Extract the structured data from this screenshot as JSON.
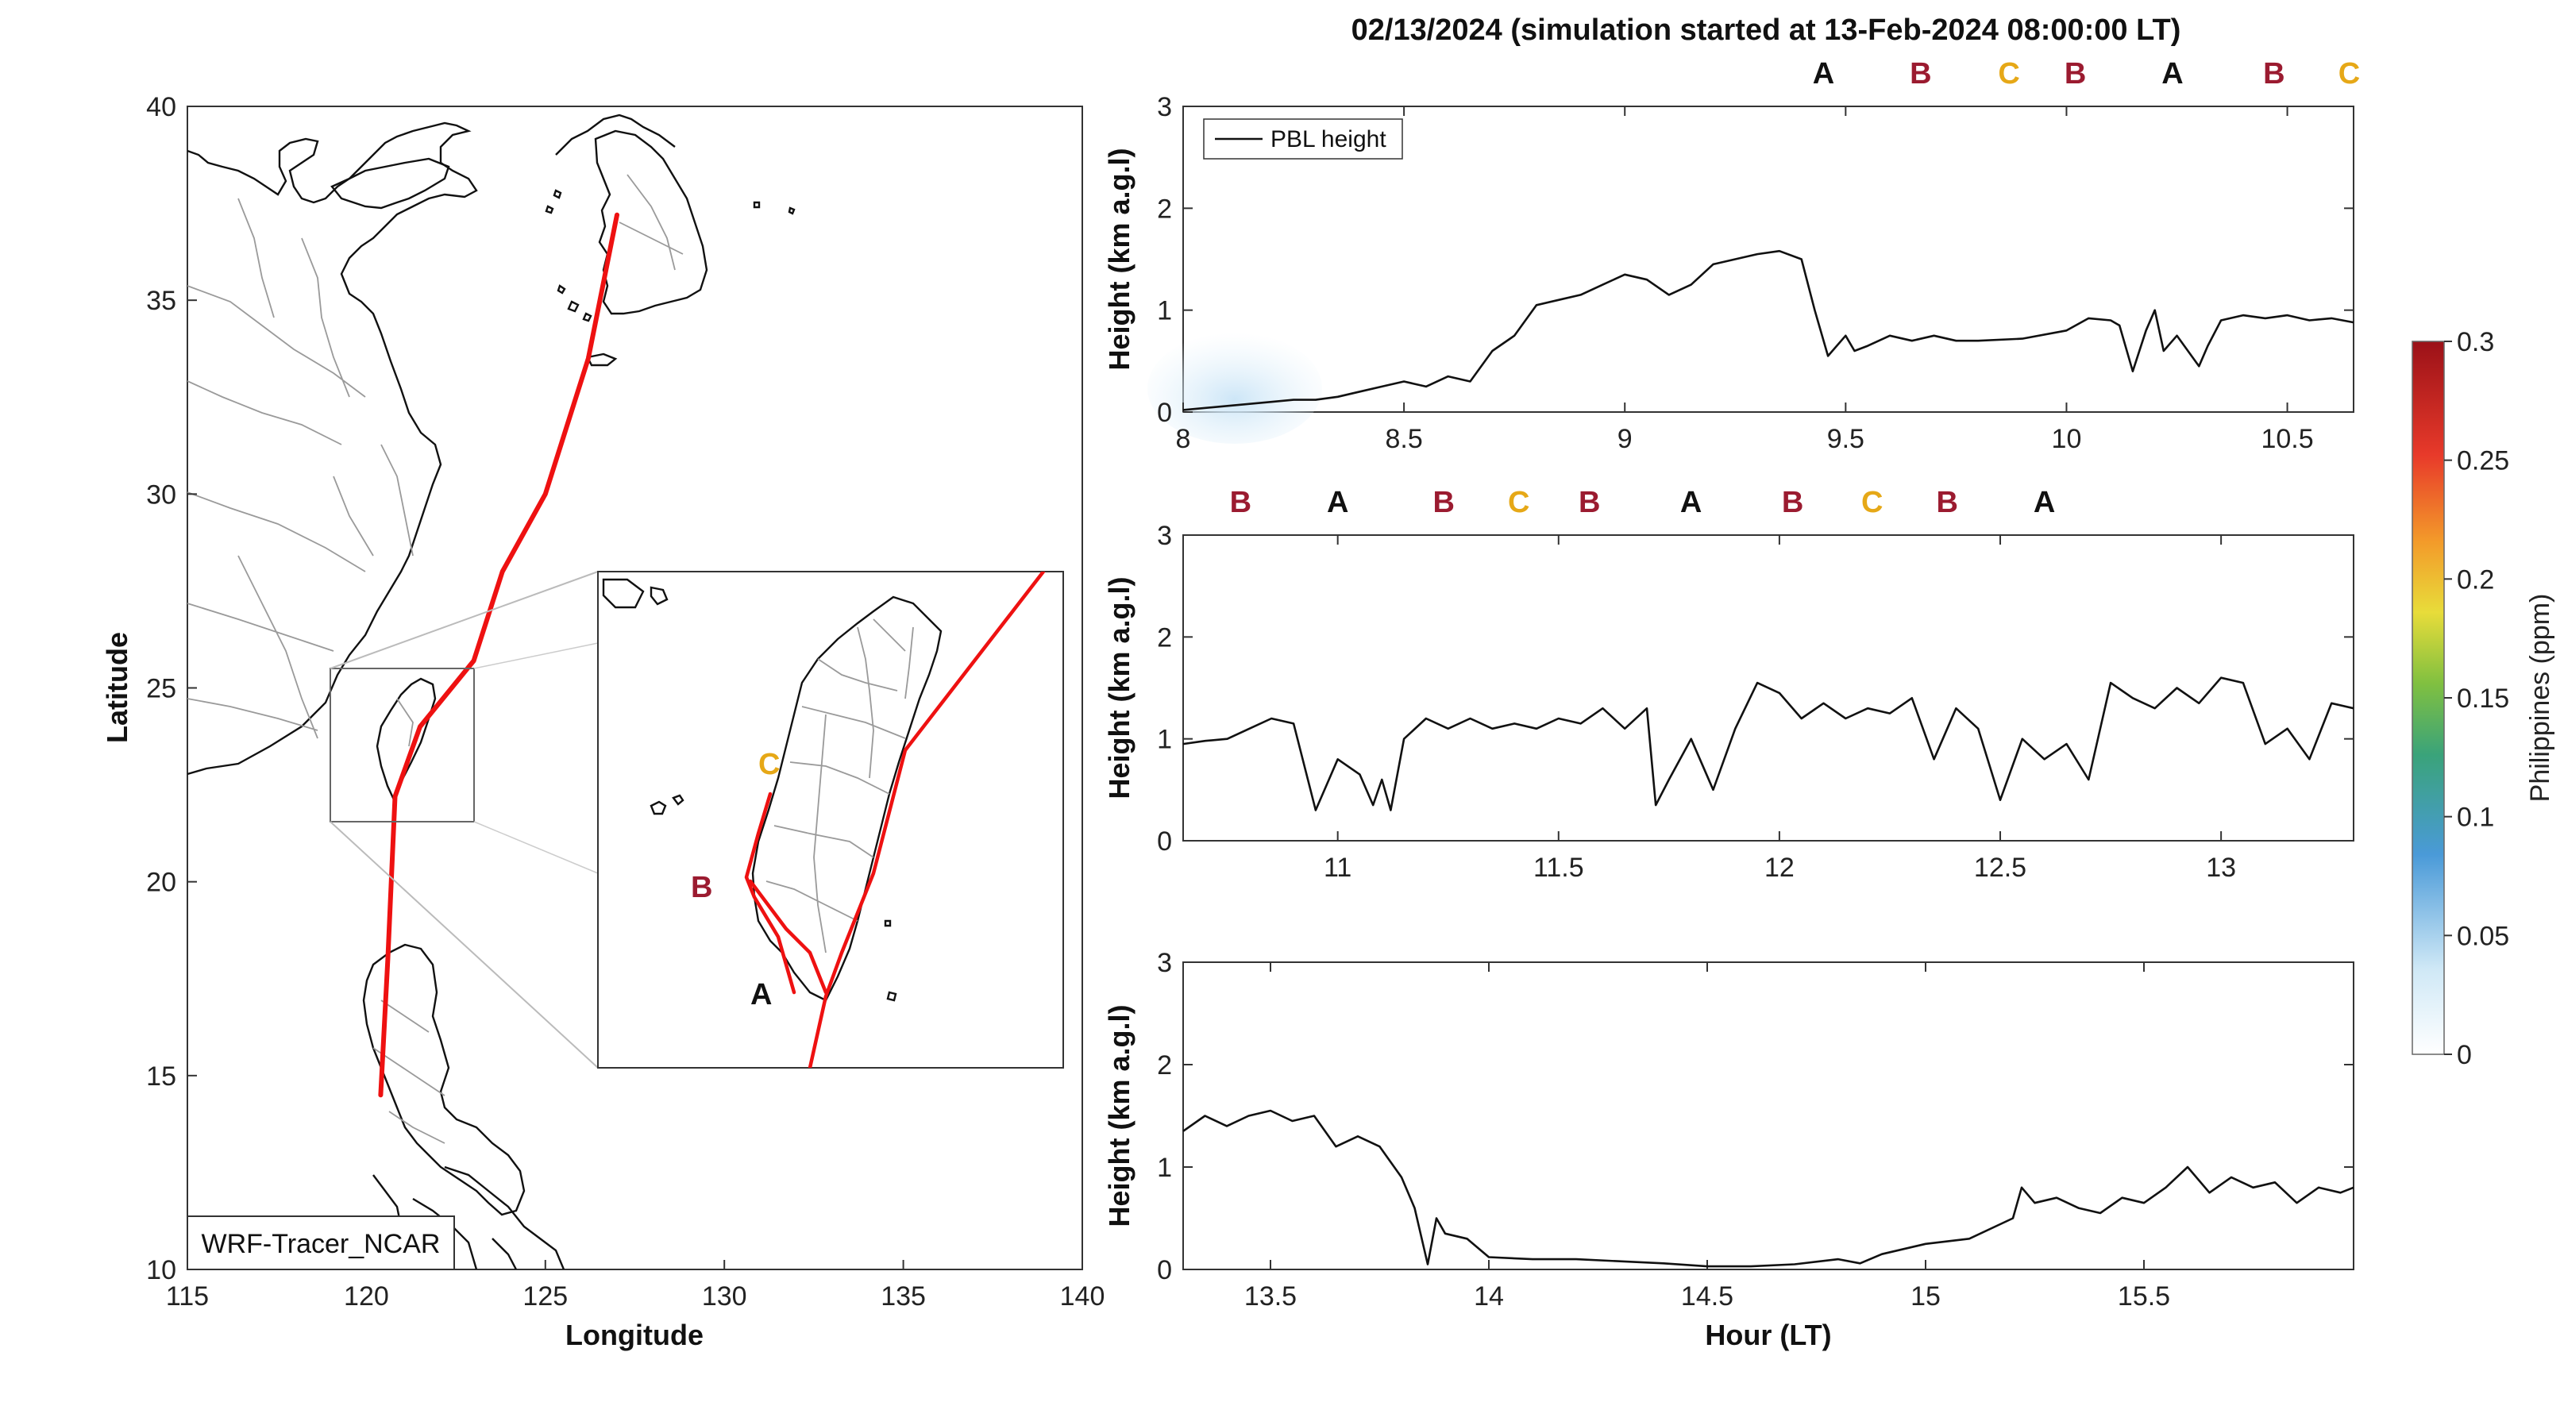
{
  "title": "02/13/2024 (simulation started at 13-Feb-2024 08:00:00 LT)",
  "map": {
    "xlabel": "Longitude",
    "ylabel": "Latitude",
    "xticks": [
      "115",
      "120",
      "125",
      "130",
      "135",
      "140"
    ],
    "yticks": [
      "10",
      "15",
      "20",
      "25",
      "30",
      "35",
      "40"
    ],
    "model_label": "WRF-Tracer_NCAR",
    "trajectory_color": "#ee1111",
    "trajectory": [
      [
        127.0,
        37.2
      ],
      [
        126.2,
        33.5
      ],
      [
        125.0,
        30.0
      ],
      [
        123.8,
        28.0
      ],
      [
        123.0,
        25.7
      ],
      [
        121.5,
        24.0
      ],
      [
        120.8,
        22.2
      ],
      [
        120.6,
        18.0
      ],
      [
        120.4,
        14.5
      ]
    ],
    "inset_labels": [
      {
        "text": "C",
        "color": "#e6a817"
      },
      {
        "text": "B",
        "color": "#9b1b30"
      },
      {
        "text": "A",
        "color": "#111111"
      }
    ]
  },
  "colorbar": {
    "label": "Philippines (ppm)",
    "ticks": [
      "0",
      "0.05",
      "0.1",
      "0.15",
      "0.2",
      "0.25",
      "0.3"
    ]
  },
  "marker_colors": {
    "A": "#111111",
    "B": "#9b1b30",
    "C": "#e6a817"
  },
  "chart_data": [
    {
      "type": "line",
      "ylabel": "Height (km a.g.l)",
      "xlim": [
        8,
        10.65
      ],
      "ylim": [
        0,
        3
      ],
      "xticks": [
        "8",
        "8.5",
        "9",
        "9.5",
        "10",
        "10.5"
      ],
      "yticks": [
        "0",
        "1",
        "2",
        "3"
      ],
      "legend": "PBL height",
      "legend_position": "top-left",
      "markers": [
        {
          "label": "A",
          "x": 9.45
        },
        {
          "label": "B",
          "x": 9.67
        },
        {
          "label": "C",
          "x": 9.87
        },
        {
          "label": "B",
          "x": 10.02
        },
        {
          "label": "A",
          "x": 10.24
        },
        {
          "label": "B",
          "x": 10.47
        },
        {
          "label": "C",
          "x": 10.64
        }
      ],
      "series": [
        {
          "name": "PBL height",
          "x": [
            8.0,
            8.1,
            8.2,
            8.25,
            8.3,
            8.35,
            8.4,
            8.45,
            8.5,
            8.55,
            8.6,
            8.65,
            8.7,
            8.75,
            8.8,
            8.85,
            8.9,
            8.95,
            9.0,
            9.05,
            9.1,
            9.15,
            9.2,
            9.25,
            9.3,
            9.35,
            9.4,
            9.43,
            9.46,
            9.5,
            9.52,
            9.55,
            9.6,
            9.65,
            9.7,
            9.75,
            9.8,
            9.9,
            10.0,
            10.05,
            10.1,
            10.12,
            10.15,
            10.18,
            10.2,
            10.22,
            10.25,
            10.3,
            10.32,
            10.35,
            10.4,
            10.45,
            10.5,
            10.55,
            10.6,
            10.65
          ],
          "y": [
            0.02,
            0.06,
            0.1,
            0.12,
            0.12,
            0.15,
            0.2,
            0.25,
            0.3,
            0.25,
            0.35,
            0.3,
            0.6,
            0.75,
            1.05,
            1.1,
            1.15,
            1.25,
            1.35,
            1.3,
            1.15,
            1.25,
            1.45,
            1.5,
            1.55,
            1.58,
            1.5,
            1.0,
            0.55,
            0.75,
            0.6,
            0.65,
            0.75,
            0.7,
            0.75,
            0.7,
            0.7,
            0.72,
            0.8,
            0.92,
            0.9,
            0.85,
            0.4,
            0.8,
            1.0,
            0.6,
            0.75,
            0.45,
            0.65,
            0.9,
            0.95,
            0.92,
            0.95,
            0.9,
            0.92,
            0.88
          ]
        }
      ]
    },
    {
      "type": "line",
      "ylabel": "Height (km a.g.l)",
      "xlim": [
        10.65,
        13.3
      ],
      "ylim": [
        0,
        3
      ],
      "xticks": [
        "11",
        "11.5",
        "12",
        "12.5",
        "13"
      ],
      "yticks": [
        "0",
        "1",
        "2",
        "3"
      ],
      "markers": [
        {
          "label": "B",
          "x": 10.78
        },
        {
          "label": "A",
          "x": 11.0
        },
        {
          "label": "B",
          "x": 11.24
        },
        {
          "label": "C",
          "x": 11.41
        },
        {
          "label": "B",
          "x": 11.57
        },
        {
          "label": "A",
          "x": 11.8
        },
        {
          "label": "B",
          "x": 12.03
        },
        {
          "label": "C",
          "x": 12.21
        },
        {
          "label": "B",
          "x": 12.38
        },
        {
          "label": "A",
          "x": 12.6
        }
      ],
      "series": [
        {
          "name": "PBL height",
          "x": [
            10.65,
            10.7,
            10.75,
            10.8,
            10.85,
            10.9,
            10.95,
            10.98,
            11.0,
            11.05,
            11.08,
            11.1,
            11.12,
            11.15,
            11.2,
            11.25,
            11.3,
            11.35,
            11.4,
            11.45,
            11.5,
            11.55,
            11.6,
            11.65,
            11.7,
            11.72,
            11.75,
            11.8,
            11.85,
            11.9,
            11.95,
            12.0,
            12.05,
            12.1,
            12.15,
            12.2,
            12.25,
            12.3,
            12.35,
            12.4,
            12.45,
            12.5,
            12.55,
            12.6,
            12.65,
            12.7,
            12.75,
            12.8,
            12.85,
            12.9,
            12.95,
            13.0,
            13.05,
            13.1,
            13.15,
            13.2,
            13.25,
            13.3
          ],
          "y": [
            0.95,
            0.98,
            1.0,
            1.1,
            1.2,
            1.15,
            0.3,
            0.6,
            0.8,
            0.65,
            0.35,
            0.6,
            0.3,
            1.0,
            1.2,
            1.1,
            1.2,
            1.1,
            1.15,
            1.1,
            1.2,
            1.15,
            1.3,
            1.1,
            1.3,
            0.35,
            0.6,
            1.0,
            0.5,
            1.1,
            1.55,
            1.45,
            1.2,
            1.35,
            1.2,
            1.3,
            1.25,
            1.4,
            0.8,
            1.3,
            1.1,
            0.4,
            1.0,
            0.8,
            0.95,
            0.6,
            1.55,
            1.4,
            1.3,
            1.5,
            1.35,
            1.6,
            1.55,
            0.95,
            1.1,
            0.8,
            1.35,
            1.3
          ]
        }
      ]
    },
    {
      "type": "line",
      "xlabel": "Hour (LT)",
      "ylabel": "Height (km a.g.l)",
      "xlim": [
        13.3,
        15.98
      ],
      "ylim": [
        0,
        3
      ],
      "xticks": [
        "13.5",
        "14",
        "14.5",
        "15",
        "15.5"
      ],
      "yticks": [
        "0",
        "1",
        "2",
        "3"
      ],
      "series": [
        {
          "name": "PBL height",
          "x": [
            13.3,
            13.35,
            13.4,
            13.45,
            13.5,
            13.55,
            13.6,
            13.65,
            13.7,
            13.75,
            13.8,
            13.83,
            13.86,
            13.88,
            13.9,
            13.95,
            14.0,
            14.1,
            14.2,
            14.3,
            14.4,
            14.5,
            14.6,
            14.7,
            14.8,
            14.85,
            14.9,
            15.0,
            15.1,
            15.2,
            15.22,
            15.25,
            15.3,
            15.35,
            15.4,
            15.45,
            15.5,
            15.55,
            15.6,
            15.65,
            15.7,
            15.75,
            15.8,
            15.85,
            15.9,
            15.95,
            15.98
          ],
          "y": [
            1.35,
            1.5,
            1.4,
            1.5,
            1.55,
            1.45,
            1.5,
            1.2,
            1.3,
            1.2,
            0.9,
            0.6,
            0.05,
            0.5,
            0.35,
            0.3,
            0.12,
            0.1,
            0.1,
            0.08,
            0.06,
            0.03,
            0.03,
            0.05,
            0.1,
            0.06,
            0.15,
            0.25,
            0.3,
            0.5,
            0.8,
            0.65,
            0.7,
            0.6,
            0.55,
            0.7,
            0.65,
            0.8,
            1.0,
            0.75,
            0.9,
            0.8,
            0.85,
            0.65,
            0.8,
            0.75,
            0.8
          ]
        }
      ]
    }
  ]
}
